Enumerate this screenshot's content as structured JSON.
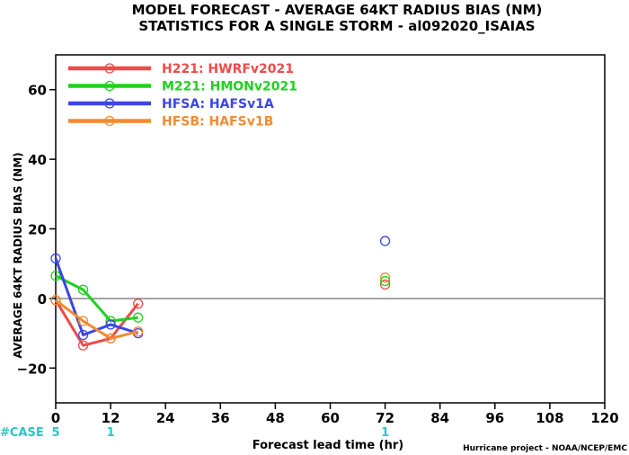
{
  "chart_data": {
    "type": "line",
    "title_line1": "MODEL FORECAST - AVERAGE 64KT RADIUS BIAS (NM)",
    "title_line2": "STATISTICS FOR A SINGLE STORM - al092020_ISAIAS",
    "xlabel": "Forecast lead time (hr)",
    "ylabel": "AVERAGE 64KT RADIUS BIAS (NM)",
    "credit": "Hurricane project - NOAA/NCEP/EMC",
    "xlim": [
      0,
      120
    ],
    "ylim": [
      -30,
      70
    ],
    "x_ticks": [
      0,
      12,
      24,
      36,
      48,
      60,
      72,
      84,
      96,
      108,
      120
    ],
    "y_ticks": [
      -20,
      0,
      20,
      40,
      60
    ],
    "zero_line": true,
    "legend_position": "top-left",
    "series": [
      {
        "name": "H221: HWRFv2021",
        "color": "#f04a4a",
        "x": [
          0,
          6,
          12,
          18,
          72
        ],
        "y": [
          -0.5,
          -13.5,
          -11.5,
          -1.5,
          4
        ]
      },
      {
        "name": "M221: HMONv2021",
        "color": "#1ed21e",
        "x": [
          0,
          6,
          12,
          18,
          72
        ],
        "y": [
          6.5,
          2.5,
          -6.5,
          -5.5,
          5
        ]
      },
      {
        "name": "HFSA: HAFSv1A",
        "color": "#3c46e6",
        "x": [
          0,
          6,
          12,
          18,
          72
        ],
        "y": [
          11.5,
          -10.5,
          -7.5,
          -10,
          16.5
        ]
      },
      {
        "name": "HFSB: HAFSv1B",
        "color": "#f08c32",
        "x": [
          0,
          6,
          12,
          18,
          72
        ],
        "y": [
          -0.5,
          -6.5,
          -11.5,
          -9.5,
          6
        ]
      }
    ],
    "case_label": "#CASE",
    "case_color": "#28c8c8",
    "cases": [
      {
        "x": 0,
        "count": "5"
      },
      {
        "x": 12,
        "count": "1"
      },
      {
        "x": 72,
        "count": "1"
      }
    ]
  }
}
